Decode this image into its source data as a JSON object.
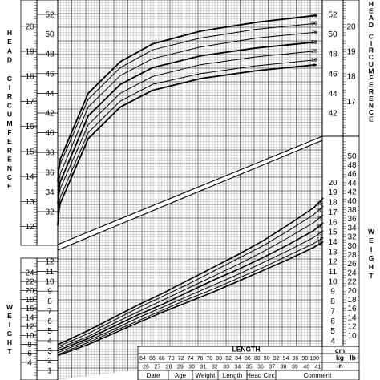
{
  "chart_data": [
    {
      "type": "line",
      "name_text": "HEAD CIRCUMFERENCE",
      "units": [
        "cm",
        "in"
      ],
      "y_cm_range": [
        31,
        52.5
      ],
      "y_in_range": [
        12,
        20.5
      ],
      "cm_ticks": [
        32,
        34,
        36,
        38,
        40,
        42,
        44,
        46,
        48,
        50,
        52
      ],
      "cm_ticks_right": [
        42,
        44,
        46,
        48,
        50,
        52
      ],
      "in_ticks": [
        12,
        13,
        14,
        15,
        16,
        17,
        18,
        19,
        20
      ],
      "in_ticks_right": [
        17,
        18,
        19,
        20
      ],
      "percentiles": [
        "95",
        "90",
        "75",
        "50",
        "25",
        "10",
        "5"
      ],
      "series": [
        {
          "name": "95",
          "values": [
            37.5,
            44.0,
            47.2,
            49.0,
            50.3,
            51.2,
            51.9
          ]
        },
        {
          "name": "90",
          "values": [
            37.0,
            43.4,
            46.6,
            48.4,
            49.6,
            50.5,
            51.1
          ]
        },
        {
          "name": "75",
          "values": [
            36.0,
            42.6,
            45.8,
            47.5,
            48.7,
            49.6,
            50.2
          ]
        },
        {
          "name": "50",
          "values": [
            35.2,
            41.7,
            44.9,
            46.6,
            47.8,
            48.6,
            49.2
          ]
        },
        {
          "name": "25",
          "values": [
            34.5,
            40.8,
            44.0,
            45.7,
            46.9,
            47.7,
            48.3
          ]
        },
        {
          "name": "10",
          "values": [
            33.6,
            40.0,
            43.2,
            44.9,
            46.0,
            46.8,
            47.4
          ]
        },
        {
          "name": "5",
          "values": [
            33.0,
            39.4,
            42.6,
            44.3,
            45.5,
            46.3,
            46.9
          ]
        }
      ]
    },
    {
      "type": "line",
      "name_text": "WEIGHT",
      "units": [
        "kg",
        "lb"
      ],
      "kg_ticks": [
        1,
        2,
        3,
        4,
        5,
        6,
        7,
        8,
        9,
        10,
        11,
        12,
        13,
        14,
        15,
        16,
        17,
        18,
        19,
        20
      ],
      "lb_ticks_left": [
        4,
        6,
        8,
        10,
        12,
        14,
        16,
        18,
        20,
        22,
        24
      ],
      "lb_ticks_right": [
        4,
        6,
        8,
        10,
        12,
        14,
        16,
        18,
        20,
        22,
        24,
        26,
        28,
        30,
        32,
        34,
        36,
        38,
        40,
        42,
        44,
        46,
        48,
        50
      ],
      "x_label": "LENGTH",
      "x_cm_ticks": [
        64,
        66,
        68,
        70,
        72,
        74,
        76,
        78,
        80,
        82,
        84,
        86,
        88,
        90,
        92,
        94,
        96,
        98,
        100
      ],
      "x_in_ticks": [
        26,
        27,
        28,
        29,
        30,
        31,
        32,
        33,
        34,
        35,
        36,
        37,
        38,
        39,
        40,
        41
      ],
      "percentiles": [
        "95",
        "90",
        "75",
        "50",
        "25",
        "10",
        "5"
      ],
      "series": [
        {
          "name": "95",
          "x": [
            49,
            55,
            60,
            65,
            70,
            75,
            80,
            85,
            90,
            95,
            100,
            102
          ],
          "values": [
            3.6,
            5.0,
            6.3,
            7.6,
            8.8,
            10.1,
            11.4,
            12.7,
            14.1,
            15.7,
            17.4,
            18.4
          ]
        },
        {
          "name": "90",
          "x": [
            49,
            55,
            60,
            65,
            70,
            75,
            80,
            85,
            90,
            95,
            100,
            102
          ],
          "values": [
            3.4,
            4.7,
            6.0,
            7.3,
            8.5,
            9.7,
            11.0,
            12.3,
            13.6,
            15.1,
            16.7,
            17.6
          ]
        },
        {
          "name": "75",
          "x": [
            49,
            55,
            60,
            65,
            70,
            75,
            80,
            85,
            90,
            95,
            100,
            102
          ],
          "values": [
            3.2,
            4.4,
            5.7,
            6.9,
            8.1,
            9.3,
            10.5,
            11.7,
            13.0,
            14.4,
            15.9,
            16.7
          ]
        },
        {
          "name": "50",
          "x": [
            49,
            55,
            60,
            65,
            70,
            75,
            80,
            85,
            90,
            95,
            100,
            102
          ],
          "values": [
            3.0,
            4.2,
            5.4,
            6.6,
            7.7,
            8.9,
            10.1,
            11.2,
            12.4,
            13.7,
            15.1,
            15.9
          ]
        },
        {
          "name": "25",
          "x": [
            49,
            55,
            60,
            65,
            70,
            75,
            80,
            85,
            90,
            95,
            100,
            102
          ],
          "values": [
            2.8,
            4.0,
            5.1,
            6.3,
            7.4,
            8.5,
            9.6,
            10.7,
            11.9,
            13.1,
            14.4,
            15.1
          ]
        },
        {
          "name": "10",
          "x": [
            49,
            55,
            60,
            65,
            70,
            75,
            80,
            85,
            90,
            95,
            100,
            102
          ],
          "values": [
            2.6,
            3.8,
            4.9,
            6.0,
            7.1,
            8.2,
            9.2,
            10.3,
            11.4,
            12.6,
            13.8,
            14.4
          ]
        },
        {
          "name": "5",
          "x": [
            49,
            55,
            60,
            65,
            70,
            75,
            80,
            85,
            90,
            95,
            100,
            102
          ],
          "values": [
            2.5,
            3.6,
            4.7,
            5.8,
            6.9,
            7.9,
            8.9,
            10.0,
            11.1,
            12.2,
            13.4,
            14.0
          ]
        }
      ]
    }
  ],
  "record_table": {
    "headers": [
      "Date",
      "Age",
      "Weight",
      "Length",
      "Head Circ.",
      "Comment"
    ]
  }
}
